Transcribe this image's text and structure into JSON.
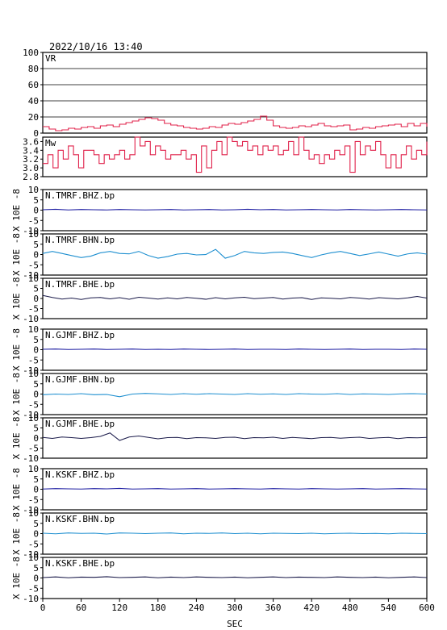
{
  "header": {
    "timestamp": "2022/10/16  13:40"
  },
  "chart_data": {
    "type": "line",
    "x_axis": {
      "label": "SEC",
      "lim": [
        0,
        600
      ],
      "ticks": [
        "0",
        "60",
        "120",
        "180",
        "240",
        "300",
        "360",
        "420",
        "480",
        "540",
        "600"
      ]
    },
    "panels": [
      {
        "name": "VR",
        "ylim": [
          0,
          100
        ],
        "ticks": [
          "0",
          "20",
          "40",
          "60",
          "80",
          "100"
        ],
        "tick_values": [
          0,
          20,
          40,
          60,
          80,
          100
        ],
        "gridlines": true,
        "color": "#e0204a",
        "style": "step",
        "x": [
          0,
          10,
          20,
          30,
          40,
          50,
          60,
          70,
          80,
          90,
          100,
          110,
          120,
          130,
          140,
          150,
          160,
          170,
          180,
          190,
          200,
          210,
          220,
          230,
          240,
          250,
          260,
          270,
          280,
          290,
          300,
          310,
          320,
          330,
          340,
          350,
          360,
          370,
          380,
          390,
          400,
          410,
          420,
          430,
          440,
          450,
          460,
          470,
          480,
          490,
          500,
          510,
          520,
          530,
          540,
          550,
          560,
          570,
          580,
          590,
          600
        ],
        "y": [
          8,
          5,
          3,
          4,
          6,
          5,
          7,
          8,
          6,
          9,
          10,
          8,
          11,
          13,
          15,
          17,
          19,
          18,
          16,
          12,
          10,
          9,
          7,
          6,
          5,
          6,
          8,
          7,
          10,
          12,
          11,
          13,
          15,
          17,
          21,
          16,
          9,
          7,
          6,
          7,
          9,
          8,
          10,
          12,
          9,
          8,
          9,
          10,
          4,
          5,
          7,
          6,
          8,
          9,
          10,
          11,
          8,
          12,
          9,
          12,
          8
        ]
      },
      {
        "name": "Mw",
        "ylim": [
          2.8,
          3.7
        ],
        "ticks": [
          "2.8",
          "3.0",
          "3.2",
          "3.4",
          "3.6"
        ],
        "tick_values": [
          2.8,
          3.0,
          3.2,
          3.4,
          3.6
        ],
        "gridlines": false,
        "color": "#e0204a",
        "style": "step",
        "x": [
          0,
          8,
          16,
          24,
          32,
          40,
          48,
          56,
          64,
          72,
          80,
          88,
          96,
          104,
          112,
          120,
          128,
          136,
          144,
          152,
          160,
          168,
          176,
          184,
          192,
          200,
          208,
          216,
          224,
          232,
          240,
          248,
          256,
          264,
          272,
          280,
          288,
          296,
          304,
          312,
          320,
          328,
          336,
          344,
          352,
          360,
          368,
          376,
          384,
          392,
          400,
          408,
          416,
          424,
          432,
          440,
          448,
          456,
          464,
          472,
          480,
          488,
          496,
          504,
          512,
          520,
          528,
          536,
          544,
          552,
          560,
          568,
          576,
          584,
          592,
          600
        ],
        "y": [
          3.1,
          3.3,
          3.0,
          3.4,
          3.2,
          3.5,
          3.3,
          3.0,
          3.4,
          3.4,
          3.3,
          3.1,
          3.3,
          3.2,
          3.3,
          3.4,
          3.2,
          3.3,
          3.7,
          3.5,
          3.6,
          3.3,
          3.5,
          3.4,
          3.2,
          3.3,
          3.3,
          3.4,
          3.2,
          3.3,
          2.9,
          3.5,
          3.0,
          3.4,
          3.6,
          3.3,
          3.7,
          3.6,
          3.5,
          3.6,
          3.4,
          3.5,
          3.3,
          3.5,
          3.4,
          3.5,
          3.3,
          3.4,
          3.6,
          3.3,
          3.7,
          3.4,
          3.2,
          3.3,
          3.1,
          3.3,
          3.2,
          3.4,
          3.3,
          3.5,
          2.9,
          3.6,
          3.3,
          3.5,
          3.4,
          3.6,
          3.3,
          3.0,
          3.3,
          3.0,
          3.3,
          3.5,
          3.2,
          3.4,
          3.3,
          3.6
        ]
      },
      {
        "name": "N.TMRF.BHZ.bp",
        "ylim": [
          -10,
          10
        ],
        "ticks": [
          "-10",
          "-5",
          "0",
          "5",
          "10"
        ],
        "tick_values": [
          -10,
          -5,
          0,
          5,
          10
        ],
        "ylabel": "X 10E -8",
        "color": "#1a1aa0",
        "x": [
          0,
          20,
          40,
          60,
          80,
          100,
          120,
          140,
          160,
          180,
          200,
          220,
          240,
          260,
          280,
          300,
          320,
          340,
          360,
          380,
          400,
          420,
          440,
          460,
          480,
          500,
          520,
          540,
          560,
          580,
          600
        ],
        "y": [
          0.2,
          0.4,
          0.1,
          0.3,
          0.2,
          0.1,
          0.3,
          0.2,
          0.1,
          0.2,
          0.3,
          0.1,
          0.2,
          0.3,
          0.1,
          0.2,
          0.4,
          0.2,
          0.3,
          0.1,
          0.2,
          0.3,
          0.2,
          0.1,
          0.3,
          0.2,
          0.1,
          0.2,
          0.3,
          0.2,
          0.1
        ]
      },
      {
        "name": "N.TMRF.BHN.bp",
        "ylim": [
          -10,
          10
        ],
        "ticks": [
          "-10",
          "-5",
          "0",
          "5",
          "10"
        ],
        "tick_values": [
          -10,
          -5,
          0,
          5,
          10
        ],
        "ylabel": "X 10E -8",
        "color": "#1e8fd0",
        "x": [
          0,
          15,
          30,
          45,
          60,
          75,
          90,
          105,
          120,
          135,
          150,
          165,
          180,
          195,
          210,
          225,
          240,
          255,
          270,
          285,
          300,
          315,
          330,
          345,
          360,
          375,
          390,
          405,
          420,
          435,
          450,
          465,
          480,
          495,
          510,
          525,
          540,
          555,
          570,
          585,
          600
        ],
        "y": [
          0.5,
          1.5,
          0.5,
          -0.5,
          -1.5,
          -0.8,
          0.8,
          1.5,
          0.5,
          0.3,
          1.5,
          -0.5,
          -1.8,
          -1.0,
          0.2,
          0.5,
          -0.2,
          0.0,
          2.5,
          -1.8,
          -0.5,
          1.5,
          0.8,
          0.5,
          1.0,
          1.2,
          0.5,
          -0.5,
          -1.5,
          -0.2,
          0.8,
          1.5,
          0.5,
          -0.5,
          0.3,
          1.2,
          0.2,
          -0.8,
          0.3,
          0.8,
          0.2
        ]
      },
      {
        "name": "N.TMRF.BHE.bp",
        "ylim": [
          -10,
          10
        ],
        "ticks": [
          "-10",
          "-5",
          "0",
          "5",
          "10"
        ],
        "tick_values": [
          -10,
          -5,
          0,
          5,
          10
        ],
        "ylabel": "X 10E -8",
        "color": "#1a1a4a",
        "x": [
          0,
          15,
          30,
          45,
          60,
          75,
          90,
          105,
          120,
          135,
          150,
          165,
          180,
          195,
          210,
          225,
          240,
          255,
          270,
          285,
          300,
          315,
          330,
          345,
          360,
          375,
          390,
          405,
          420,
          435,
          450,
          465,
          480,
          495,
          510,
          525,
          540,
          555,
          570,
          585,
          600
        ],
        "y": [
          1.5,
          0.5,
          -0.3,
          0.2,
          -0.5,
          0.3,
          0.5,
          -0.2,
          0.4,
          -0.4,
          0.6,
          0.2,
          -0.3,
          0.3,
          -0.2,
          0.5,
          0.1,
          -0.4,
          0.4,
          -0.2,
          0.3,
          0.6,
          -0.1,
          0.2,
          0.5,
          -0.3,
          0.2,
          0.4,
          -0.5,
          0.3,
          0.1,
          -0.2,
          0.5,
          0.2,
          -0.3,
          0.4,
          0.1,
          -0.2,
          0.3,
          1.0,
          0.2
        ]
      },
      {
        "name": "N.GJMF.BHZ.bp",
        "ylim": [
          -10,
          10
        ],
        "ticks": [
          "-10",
          "-5",
          "0",
          "5",
          "10"
        ],
        "tick_values": [
          -10,
          -5,
          0,
          5,
          10
        ],
        "ylabel": "X 10E -8",
        "color": "#1a1aa0",
        "x": [
          0,
          20,
          40,
          60,
          80,
          100,
          120,
          140,
          160,
          180,
          200,
          220,
          240,
          260,
          280,
          300,
          320,
          340,
          360,
          380,
          400,
          420,
          440,
          460,
          480,
          500,
          520,
          540,
          560,
          580,
          600
        ],
        "y": [
          0.2,
          0.3,
          0.1,
          0.2,
          0.3,
          0.1,
          0.2,
          0.3,
          0.1,
          0.2,
          0.1,
          0.3,
          0.2,
          0.1,
          0.2,
          0.3,
          0.1,
          0.2,
          0.2,
          0.1,
          0.3,
          0.2,
          0.1,
          0.2,
          0.3,
          0.1,
          0.2,
          0.2,
          0.1,
          0.3,
          0.2
        ]
      },
      {
        "name": "N.GJMF.BHN.bp",
        "ylim": [
          -10,
          10
        ],
        "ticks": [
          "-10",
          "-5",
          "0",
          "5",
          "10"
        ],
        "tick_values": [
          -10,
          -5,
          0,
          5,
          10
        ],
        "ylabel": "X 10E -8",
        "color": "#1e8fd0",
        "x": [
          0,
          20,
          40,
          60,
          80,
          100,
          120,
          140,
          160,
          180,
          200,
          220,
          240,
          260,
          280,
          300,
          320,
          340,
          360,
          380,
          400,
          420,
          440,
          460,
          480,
          500,
          520,
          540,
          560,
          580,
          600
        ],
        "y": [
          -0.3,
          0.0,
          -0.2,
          0.2,
          -0.3,
          -0.2,
          -1.3,
          0.0,
          0.3,
          0.1,
          -0.2,
          0.2,
          -0.1,
          0.2,
          0.0,
          -0.2,
          0.2,
          -0.1,
          0.1,
          -0.2,
          0.2,
          0.0,
          -0.1,
          0.2,
          -0.2,
          0.1,
          0.0,
          -0.2,
          0.1,
          0.2,
          0.0
        ]
      },
      {
        "name": "N.GJMF.BHE.bp",
        "ylim": [
          -10,
          10
        ],
        "ticks": [
          "-10",
          "-5",
          "0",
          "5",
          "10"
        ],
        "tick_values": [
          -10,
          -5,
          0,
          5,
          10
        ],
        "ylabel": "X 10E -8",
        "color": "#1a1a4a",
        "x": [
          0,
          15,
          30,
          45,
          60,
          75,
          90,
          105,
          120,
          135,
          150,
          165,
          180,
          195,
          210,
          225,
          240,
          255,
          270,
          285,
          300,
          315,
          330,
          345,
          360,
          375,
          390,
          405,
          420,
          435,
          450,
          465,
          480,
          495,
          510,
          525,
          540,
          555,
          570,
          585,
          600
        ],
        "y": [
          0.3,
          -0.2,
          0.5,
          0.2,
          -0.2,
          0.2,
          0.8,
          2.5,
          -1.2,
          0.5,
          1.0,
          0.3,
          -0.4,
          0.2,
          0.3,
          -0.3,
          0.2,
          0.1,
          -0.2,
          0.3,
          0.4,
          -0.3,
          0.2,
          0.1,
          0.4,
          -0.2,
          0.3,
          0.0,
          -0.3,
          0.2,
          0.3,
          -0.1,
          0.2,
          0.4,
          -0.2,
          0.1,
          0.3,
          -0.3,
          0.2,
          0.1,
          0.3
        ]
      },
      {
        "name": "N.KSKF.BHZ.bp",
        "ylim": [
          -10,
          10
        ],
        "ticks": [
          "-10",
          "-5",
          "0",
          "5",
          "10"
        ],
        "tick_values": [
          -10,
          -5,
          0,
          5,
          10
        ],
        "ylabel": "X 10E -8",
        "color": "#1a1aa0",
        "x": [
          0,
          20,
          40,
          60,
          80,
          100,
          120,
          140,
          160,
          180,
          200,
          220,
          240,
          260,
          280,
          300,
          320,
          340,
          360,
          380,
          400,
          420,
          440,
          460,
          480,
          500,
          520,
          540,
          560,
          580,
          600
        ],
        "y": [
          0.1,
          0.3,
          0.2,
          0.1,
          0.3,
          0.2,
          0.4,
          0.1,
          0.2,
          0.3,
          0.1,
          0.2,
          0.3,
          0.1,
          0.2,
          0.3,
          0.2,
          0.1,
          0.3,
          0.2,
          0.1,
          0.3,
          0.2,
          0.1,
          0.2,
          0.3,
          0.1,
          0.2,
          0.3,
          0.2,
          0.1
        ]
      },
      {
        "name": "N.KSKF.BHN.bp",
        "ylim": [
          -10,
          10
        ],
        "ticks": [
          "-10",
          "-5",
          "0",
          "5",
          "10"
        ],
        "tick_values": [
          -10,
          -5,
          0,
          5,
          10
        ],
        "ylabel": "X 10E -8",
        "color": "#1e8fd0",
        "x": [
          0,
          20,
          40,
          60,
          80,
          100,
          120,
          140,
          160,
          180,
          200,
          220,
          240,
          260,
          280,
          300,
          320,
          340,
          360,
          380,
          400,
          420,
          440,
          460,
          480,
          500,
          520,
          540,
          560,
          580,
          600
        ],
        "y": [
          0.2,
          -0.1,
          0.3,
          0.1,
          0.2,
          -0.2,
          0.3,
          0.2,
          0.0,
          0.2,
          0.3,
          -0.1,
          0.2,
          0.1,
          0.3,
          0.0,
          0.2,
          -0.1,
          0.2,
          0.1,
          0.0,
          0.2,
          -0.1,
          0.1,
          0.2,
          0.0,
          0.1,
          -0.1,
          0.2,
          0.1,
          0.0
        ]
      },
      {
        "name": "N.KSKF.BHE.bp",
        "ylim": [
          -10,
          10
        ],
        "ticks": [
          "-10",
          "-5",
          "0",
          "5",
          "10"
        ],
        "tick_values": [
          -10,
          -5,
          0,
          5,
          10
        ],
        "ylabel": "X 10E -8",
        "color": "#1a1a4a",
        "x": [
          0,
          20,
          40,
          60,
          80,
          100,
          120,
          140,
          160,
          180,
          200,
          220,
          240,
          260,
          280,
          300,
          320,
          340,
          360,
          380,
          400,
          420,
          440,
          460,
          480,
          500,
          520,
          540,
          560,
          580,
          600
        ],
        "y": [
          0.2,
          0.5,
          0.1,
          0.4,
          0.3,
          0.6,
          0.2,
          0.3,
          0.5,
          0.1,
          0.4,
          0.2,
          0.5,
          0.3,
          0.2,
          0.4,
          0.1,
          0.3,
          0.5,
          0.2,
          0.4,
          0.3,
          0.2,
          0.5,
          0.3,
          0.2,
          0.4,
          0.1,
          0.3,
          0.5,
          0.2
        ]
      }
    ]
  }
}
